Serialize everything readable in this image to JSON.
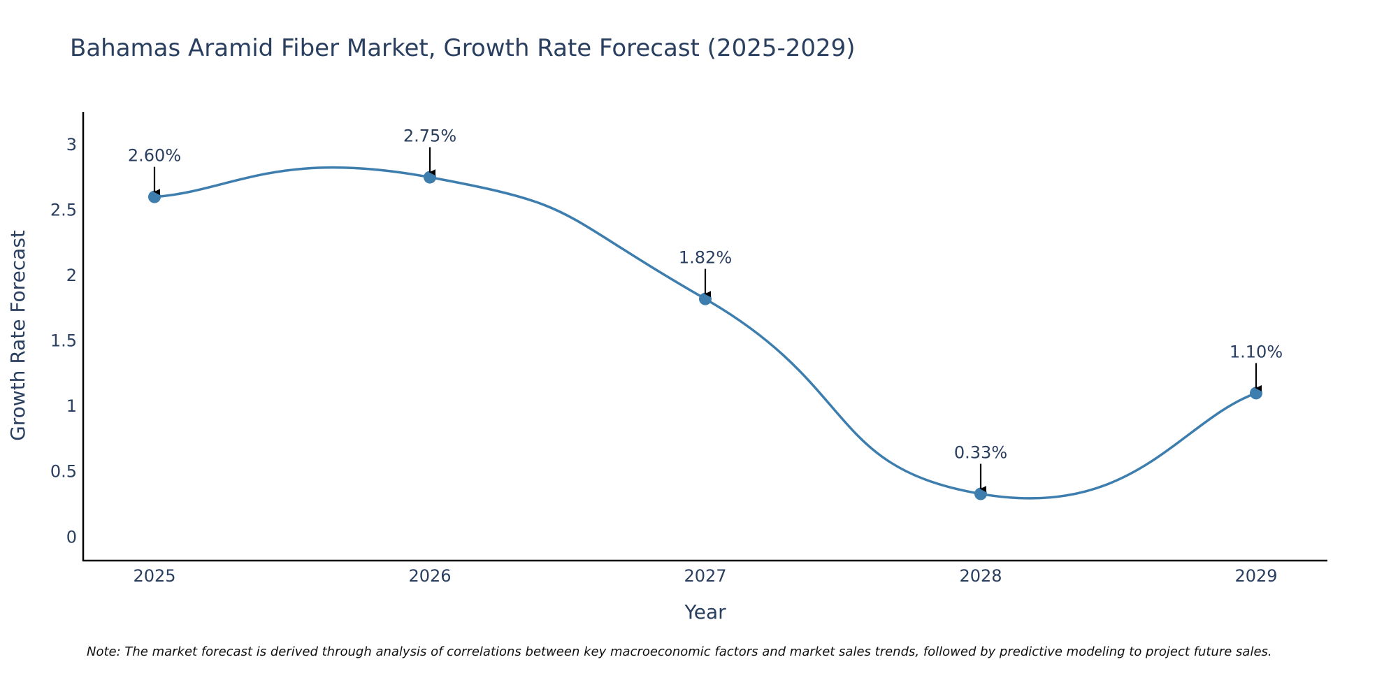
{
  "chart_data": {
    "type": "line",
    "title": "Bahamas Aramid Fiber Market, Growth Rate Forecast (2025-2029)",
    "xlabel": "Year",
    "ylabel": "Growth Rate Forecast",
    "categories": [
      "2025",
      "2026",
      "2027",
      "2028",
      "2029"
    ],
    "values": [
      2.6,
      2.75,
      1.82,
      0.33,
      1.1
    ],
    "data_labels": [
      "2.60%",
      "2.75%",
      "1.82%",
      "0.33%",
      "1.10%"
    ],
    "y_ticks": [
      0,
      0.5,
      1,
      1.5,
      2,
      2.5,
      3
    ],
    "y_tick_labels": [
      "0",
      "0.5",
      "1",
      "1.5",
      "2",
      "2.5",
      "3"
    ],
    "ylim": [
      -0.18,
      3.25
    ],
    "line_shape": "spline",
    "grid": false,
    "line_color": "#3d7eaf",
    "marker_color": "#3d7eaf",
    "arrow_color": "#000000",
    "note": "Note: The market forecast is derived through analysis of correlations between key macroeconomic factors and market sales trends, followed by predictive modeling to project future sales."
  }
}
